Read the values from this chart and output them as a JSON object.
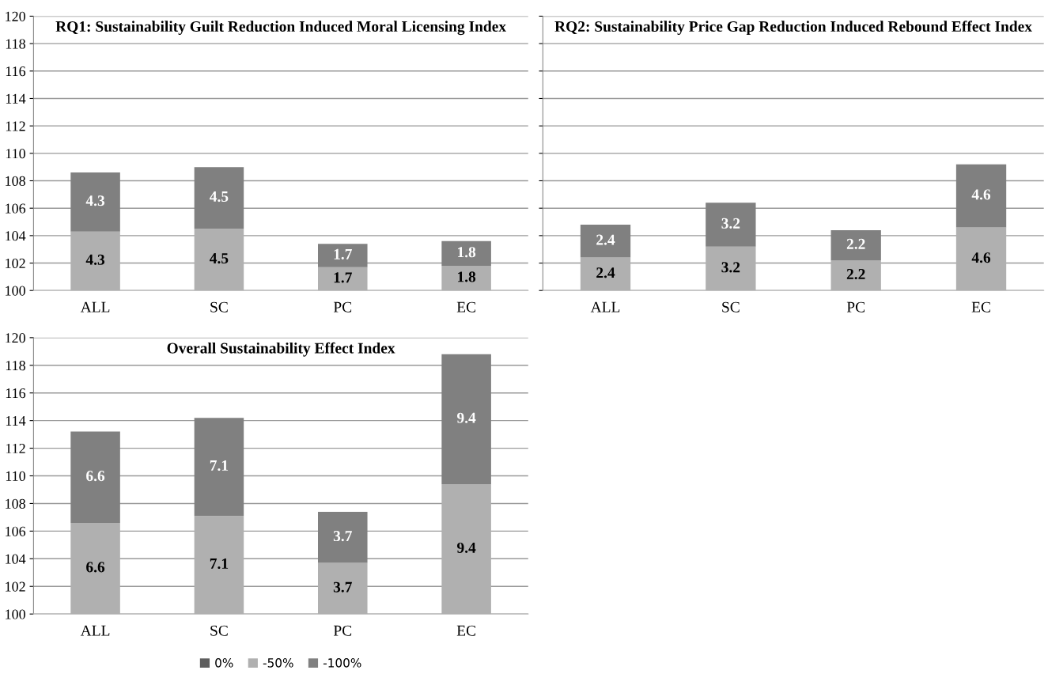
{
  "chart_data": [
    {
      "type": "bar",
      "title": "RQ1: Sustainability Guilt Reduction Induced Moral Licensing Index",
      "categories": [
        "ALL",
        "SC",
        "PC",
        "EC"
      ],
      "ylim": [
        100,
        120
      ],
      "yticks": [
        100,
        102,
        104,
        106,
        108,
        110,
        112,
        114,
        116,
        118,
        120
      ],
      "grid": "y",
      "data_labels": true,
      "legend": false,
      "series": [
        {
          "color": "#b0b0b0",
          "base": [
            100,
            100,
            100,
            100
          ],
          "values": [
            4.3,
            4.5,
            1.7,
            1.8
          ]
        },
        {
          "color": "#808080",
          "base": [
            104.3,
            104.5,
            101.7,
            101.8
          ],
          "values": [
            4.3,
            4.5,
            1.7,
            1.8
          ]
        }
      ]
    },
    {
      "type": "bar",
      "title": "RQ2: Sustainability Price Gap Reduction Induced Rebound Effect Index",
      "categories": [
        "ALL",
        "SC",
        "PC",
        "EC"
      ],
      "ylim": [
        100,
        120
      ],
      "yticks": [
        100,
        102,
        104,
        106,
        108,
        110,
        112,
        114,
        116,
        118,
        120
      ],
      "grid": "y",
      "data_labels": true,
      "legend": false,
      "tick_labels": "x",
      "series": [
        {
          "color": "#b0b0b0",
          "base": [
            100,
            100,
            100,
            100
          ],
          "values": [
            2.4,
            3.2,
            2.2,
            4.6
          ]
        },
        {
          "color": "#808080",
          "base": [
            102.4,
            103.2,
            102.2,
            104.6
          ],
          "values": [
            2.4,
            3.2,
            2.2,
            4.6
          ]
        }
      ]
    },
    {
      "type": "bar",
      "title": "Overall Sustainability Effect Index",
      "categories": [
        "ALL",
        "SC",
        "PC",
        "EC"
      ],
      "ylim": [
        100,
        120
      ],
      "yticks": [
        100,
        102,
        104,
        106,
        108,
        110,
        112,
        114,
        116,
        118,
        120
      ],
      "grid": "y",
      "data_labels": true,
      "legend": "bottom",
      "series": [
        {
          "name": "0%",
          "color": "#5e5e5e",
          "values": [
            null,
            null,
            null,
            null
          ]
        },
        {
          "name": "-50%",
          "color": "#b0b0b0",
          "base": [
            100,
            100,
            100,
            100
          ],
          "values": [
            6.6,
            7.1,
            3.7,
            9.4
          ]
        },
        {
          "name": "-100%",
          "color": "#808080",
          "base": [
            106.6,
            107.1,
            103.7,
            109.4
          ],
          "values": [
            6.6,
            7.1,
            3.7,
            9.4
          ]
        }
      ]
    }
  ]
}
